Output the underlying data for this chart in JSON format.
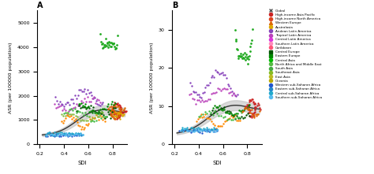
{
  "title_A": "A",
  "title_B": "B",
  "xlabel": "SDI",
  "ylabel_A": "ASR (per 100000 population)",
  "ylabel_B": "ASR (per 100000 population)",
  "ylim_A": [
    0,
    5500
  ],
  "ylim_B": [
    0,
    35
  ],
  "yticks_A": [
    0,
    1000,
    2000,
    3000,
    4000,
    5000
  ],
  "yticks_B": [
    0,
    10,
    20,
    30
  ],
  "xticks": [
    0.2,
    0.4,
    0.6,
    0.8
  ],
  "legend_entries": [
    {
      "name": "Global",
      "color": "#555555",
      "marker": "x"
    },
    {
      "name": "High-income Asia Pacific",
      "color": "#cc2222",
      "marker": "o"
    },
    {
      "name": "High-income North America",
      "color": "#dd4422",
      "marker": "o"
    },
    {
      "name": "Western Europe",
      "color": "#dd6600",
      "marker": "^"
    },
    {
      "name": "Australasia",
      "color": "#ddaa00",
      "marker": "o"
    },
    {
      "name": "Andean Latin America",
      "color": "#8844bb",
      "marker": "o"
    },
    {
      "name": "Tropical Latin America",
      "color": "#bb44bb",
      "marker": "o"
    },
    {
      "name": "Central Latin America",
      "color": "#dd33dd",
      "marker": "o"
    },
    {
      "name": "Southern Latin America",
      "color": "#ff88bb",
      "marker": "o"
    },
    {
      "name": "Caribbean",
      "color": "#ff5577",
      "marker": "o"
    },
    {
      "name": "Central Europe",
      "color": "#005500",
      "marker": "s"
    },
    {
      "name": "Eastern Europe",
      "color": "#008800",
      "marker": "s"
    },
    {
      "name": "Central Asia",
      "color": "#00bb00",
      "marker": "o"
    },
    {
      "name": "North Africa and Middle East",
      "color": "#55bb44",
      "marker": "o"
    },
    {
      "name": "South Asia",
      "color": "#44aa44",
      "marker": "o"
    },
    {
      "name": "Southeast Asia",
      "color": "#88bb22",
      "marker": "o"
    },
    {
      "name": "East Asia",
      "color": "#bbbb22",
      "marker": "o"
    },
    {
      "name": "Oceania",
      "color": "#bbaa00",
      "marker": "o"
    },
    {
      "name": "Western sub-Saharan Africa",
      "color": "#2255cc",
      "marker": "o"
    },
    {
      "name": "Eastern sub-Saharan Africa",
      "color": "#2288cc",
      "marker": "o"
    },
    {
      "name": "Central sub-Saharan Africa",
      "color": "#22aacc",
      "marker": "o"
    },
    {
      "name": "Southern sub-Saharan Africa",
      "color": "#55bbee",
      "marker": "o"
    }
  ],
  "global_trend_color": "#333333",
  "trend_band_color": "#bbbbbb"
}
